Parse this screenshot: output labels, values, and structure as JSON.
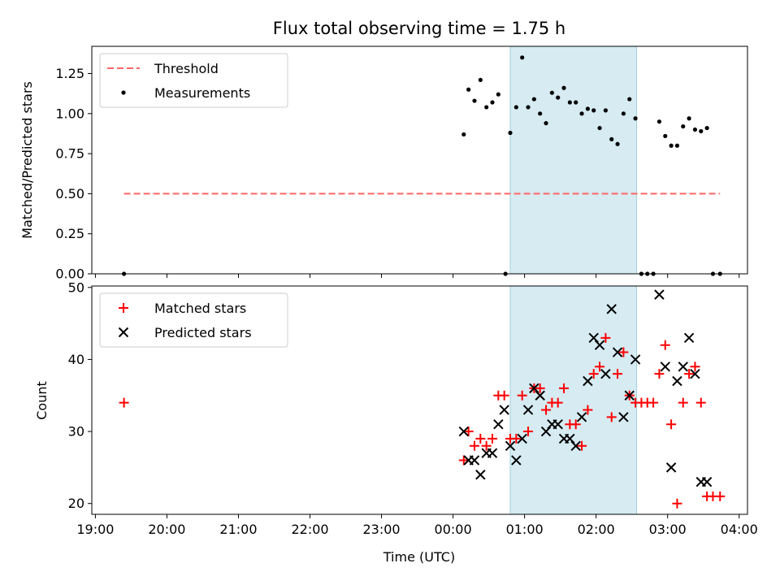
{
  "chart_data": [
    {
      "type": "scatter",
      "title": "Flux total observing time = 1.75 h",
      "xlabel": "",
      "ylabel": "Matched/Predicted stars",
      "xlim": [
        "18:57",
        "04:07"
      ],
      "ylim": [
        0,
        1.42
      ],
      "yticks": [
        "0.00",
        "0.25",
        "0.50",
        "0.75",
        "1.00",
        "1.25"
      ],
      "grid": false,
      "legend_position": "top-left",
      "shaded_span": {
        "from": "00:48",
        "to": "02:34",
        "color": "#add8e6"
      },
      "series": [
        {
          "name": "Threshold",
          "style": "dashed-line",
          "color": "#ff6666",
          "x": [
            "19:24",
            "03:44"
          ],
          "y": [
            0.5,
            0.5
          ]
        },
        {
          "name": "Measurements",
          "style": "dots",
          "color": "#000000",
          "x": [
            "19:24",
            "00:09",
            "00:13",
            "00:18",
            "00:23",
            "00:28",
            "00:33",
            "00:38",
            "00:44",
            "00:48",
            "00:53",
            "00:58",
            "01:03",
            "01:08",
            "01:13",
            "01:18",
            "01:23",
            "01:28",
            "01:33",
            "01:38",
            "01:43",
            "01:48",
            "01:53",
            "01:58",
            "02:03",
            "02:08",
            "02:13",
            "02:18",
            "02:23",
            "02:28",
            "02:33",
            "02:38",
            "02:43",
            "02:48",
            "02:53",
            "02:58",
            "03:03",
            "03:08",
            "03:13",
            "03:18",
            "03:23",
            "03:28",
            "03:33",
            "03:38",
            "03:44"
          ],
          "y": [
            0.0,
            0.87,
            1.15,
            1.08,
            1.21,
            1.04,
            1.07,
            1.12,
            0.0,
            0.88,
            1.04,
            1.35,
            1.04,
            1.09,
            1.0,
            0.94,
            1.13,
            1.1,
            1.16,
            1.07,
            1.07,
            1.0,
            1.03,
            1.02,
            0.91,
            1.02,
            0.84,
            0.81,
            1.0,
            1.09,
            0.97,
            0.0,
            0.0,
            0.0,
            0.95,
            0.86,
            0.8,
            0.8,
            0.92,
            0.97,
            0.9,
            0.89,
            0.91,
            0.0,
            0.0
          ]
        }
      ]
    },
    {
      "type": "scatter",
      "title": "",
      "xlabel": "Time (UTC)",
      "ylabel": "Count",
      "xlim": [
        "18:57",
        "04:07"
      ],
      "ylim": [
        18.5,
        50.2
      ],
      "xticks": [
        "19:00",
        "20:00",
        "21:00",
        "22:00",
        "23:00",
        "00:00",
        "01:00",
        "02:00",
        "03:00",
        "04:00"
      ],
      "yticks": [
        "20",
        "30",
        "40",
        "50"
      ],
      "grid": false,
      "legend_position": "top-left",
      "shaded_span": {
        "from": "00:48",
        "to": "02:34",
        "color": "#add8e6"
      },
      "series": [
        {
          "name": "Matched stars",
          "marker": "plus",
          "color": "#ff0000",
          "x": [
            "19:24",
            "00:09",
            "00:13",
            "00:18",
            "00:23",
            "00:28",
            "00:33",
            "00:38",
            "00:43",
            "00:48",
            "00:53",
            "00:58",
            "01:03",
            "01:08",
            "01:13",
            "01:18",
            "01:23",
            "01:28",
            "01:33",
            "01:38",
            "01:43",
            "01:48",
            "01:53",
            "01:58",
            "02:03",
            "02:08",
            "02:13",
            "02:18",
            "02:23",
            "02:28",
            "02:33",
            "02:38",
            "02:43",
            "02:48",
            "02:53",
            "02:58",
            "03:03",
            "03:08",
            "03:13",
            "03:18",
            "03:23",
            "03:28",
            "03:33",
            "03:38",
            "03:44"
          ],
          "y": [
            34,
            26,
            30,
            28,
            29,
            28,
            29,
            35,
            35,
            29,
            29,
            35,
            30,
            36,
            36,
            33,
            34,
            34,
            36,
            31,
            31,
            28,
            33,
            38,
            39,
            43,
            32,
            38,
            41,
            35,
            34,
            34,
            34,
            34,
            38,
            42,
            31,
            20,
            34,
            38,
            39,
            34,
            21,
            21,
            21
          ]
        },
        {
          "name": "Predicted stars",
          "marker": "x",
          "color": "#000000",
          "x": [
            "00:09",
            "00:13",
            "00:18",
            "00:23",
            "00:28",
            "00:33",
            "00:38",
            "00:43",
            "00:48",
            "00:53",
            "00:58",
            "01:03",
            "01:08",
            "01:13",
            "01:18",
            "01:23",
            "01:28",
            "01:33",
            "01:38",
            "01:43",
            "01:48",
            "01:53",
            "01:58",
            "02:03",
            "02:08",
            "02:13",
            "02:18",
            "02:23",
            "02:28",
            "02:33",
            "02:53",
            "02:58",
            "03:03",
            "03:08",
            "03:13",
            "03:18",
            "03:23",
            "03:28",
            "03:33"
          ],
          "y": [
            30,
            26,
            26,
            24,
            27,
            27,
            31,
            33,
            28,
            26,
            29,
            33,
            36,
            35,
            30,
            31,
            31,
            29,
            29,
            28,
            32,
            37,
            43,
            42,
            38,
            47,
            41,
            32,
            35,
            40,
            49,
            39,
            25,
            37,
            39,
            43,
            38,
            23,
            23
          ]
        }
      ]
    }
  ]
}
